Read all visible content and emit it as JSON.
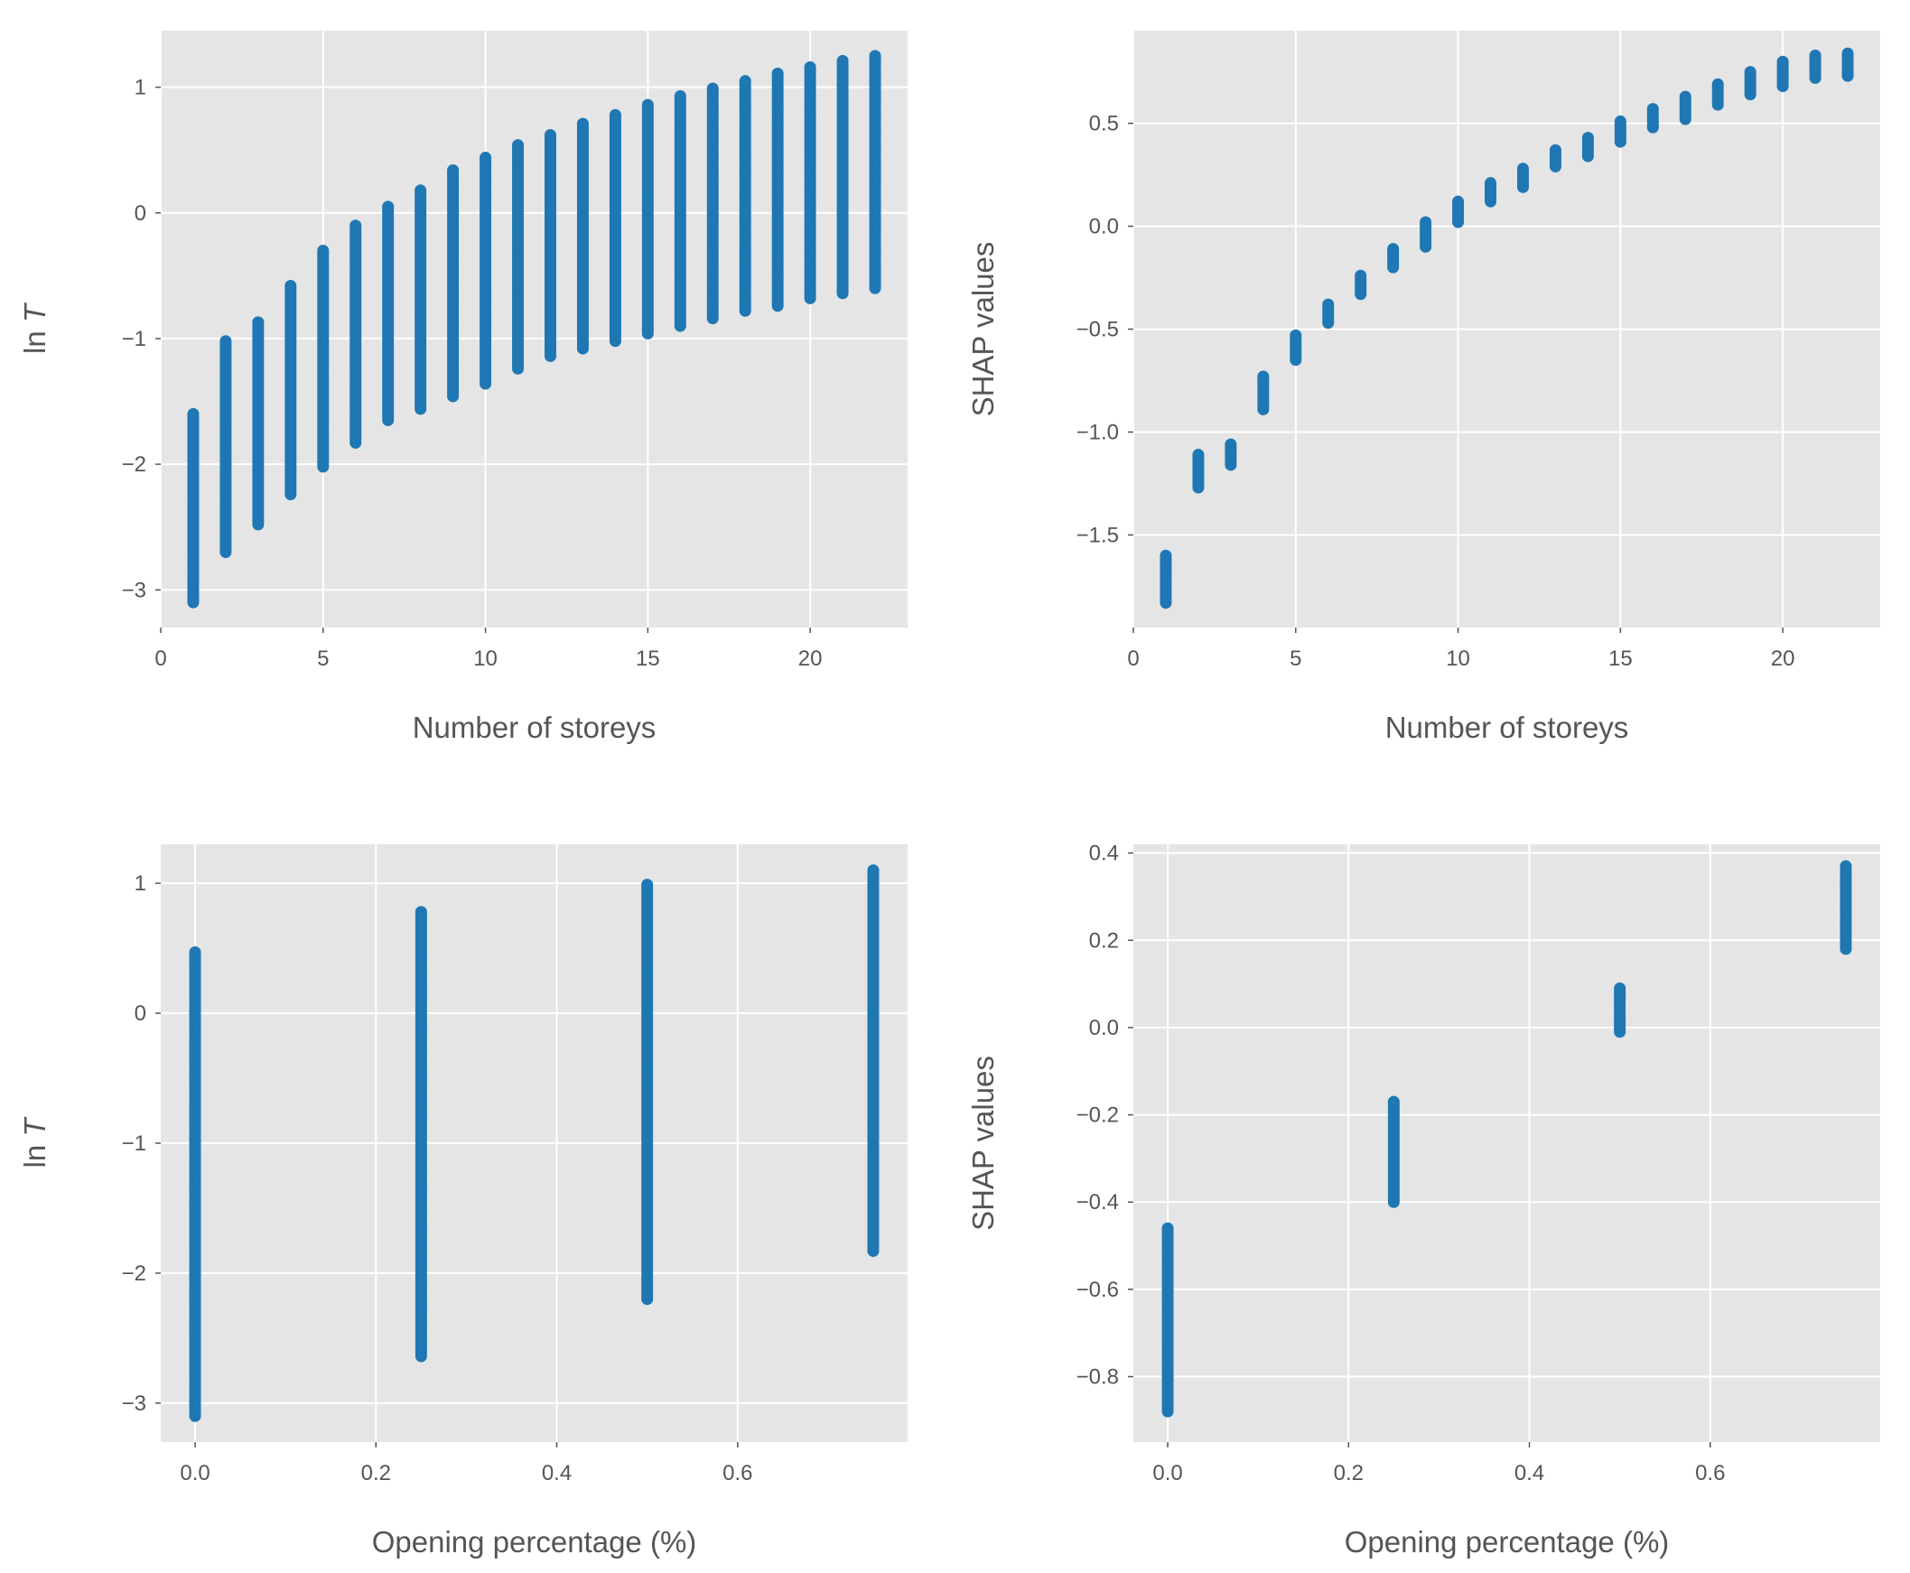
{
  "colors": {
    "panel_bg": "#e5e5e5",
    "grid": "#ffffff",
    "point": "#1f77b4",
    "text": "#555555",
    "tick": "#555555"
  },
  "chart_data": [
    {
      "type": "scatter",
      "xlabel": "Number of storeys",
      "ylabel": "ln T",
      "ylabel_parts": {
        "prefix": "ln ",
        "italic": "T"
      },
      "xlim": [
        0,
        23
      ],
      "ylim": [
        -3.3,
        1.45
      ],
      "xticks": [
        0,
        5,
        10,
        15,
        20
      ],
      "xtick_labels": [
        "0",
        "5",
        "10",
        "15",
        "20"
      ],
      "yticks": [
        -3,
        -2,
        -1,
        0,
        1
      ],
      "ytick_labels": [
        "−3",
        "−2",
        "−1",
        "0",
        "1"
      ],
      "x_values": [
        1,
        2,
        3,
        4,
        5,
        6,
        7,
        8,
        9,
        10,
        11,
        12,
        13,
        14,
        15,
        16,
        17,
        18,
        19,
        20,
        21,
        22
      ],
      "y_ranges": [
        [
          -3.1,
          -1.6
        ],
        [
          -2.7,
          -1.02
        ],
        [
          -2.48,
          -0.87
        ],
        [
          -2.24,
          -0.58
        ],
        [
          -2.02,
          -0.3
        ],
        [
          -1.83,
          -0.1
        ],
        [
          -1.65,
          0.05
        ],
        [
          -1.56,
          0.18
        ],
        [
          -1.46,
          0.34
        ],
        [
          -1.36,
          0.44
        ],
        [
          -1.24,
          0.54
        ],
        [
          -1.14,
          0.62
        ],
        [
          -1.08,
          0.71
        ],
        [
          -1.02,
          0.78
        ],
        [
          -0.96,
          0.86
        ],
        [
          -0.9,
          0.93
        ],
        [
          -0.84,
          0.99
        ],
        [
          -0.78,
          1.05
        ],
        [
          -0.74,
          1.11
        ],
        [
          -0.68,
          1.16
        ],
        [
          -0.64,
          1.21
        ],
        [
          -0.6,
          1.25
        ]
      ]
    },
    {
      "type": "scatter",
      "xlabel": "Number of storeys",
      "ylabel": "SHAP values",
      "xlim": [
        0,
        23
      ],
      "ylim": [
        -1.95,
        0.95
      ],
      "xticks": [
        0,
        5,
        10,
        15,
        20
      ],
      "xtick_labels": [
        "0",
        "5",
        "10",
        "15",
        "20"
      ],
      "yticks": [
        -1.5,
        -1.0,
        -0.5,
        0.0,
        0.5
      ],
      "ytick_labels": [
        "−1.5",
        "−1.0",
        "−0.5",
        "0.0",
        "0.5"
      ],
      "x_values": [
        1,
        2,
        3,
        4,
        5,
        6,
        7,
        8,
        9,
        10,
        11,
        12,
        13,
        14,
        15,
        16,
        17,
        18,
        19,
        20,
        21,
        22
      ],
      "y_ranges": [
        [
          -1.83,
          -1.6
        ],
        [
          -1.27,
          -1.11
        ],
        [
          -1.16,
          -1.06
        ],
        [
          -0.89,
          -0.73
        ],
        [
          -0.65,
          -0.53
        ],
        [
          -0.47,
          -0.38
        ],
        [
          -0.33,
          -0.24
        ],
        [
          -0.2,
          -0.11
        ],
        [
          -0.1,
          0.02
        ],
        [
          0.02,
          0.12
        ],
        [
          0.12,
          0.21
        ],
        [
          0.19,
          0.28
        ],
        [
          0.29,
          0.37
        ],
        [
          0.34,
          0.43
        ],
        [
          0.41,
          0.51
        ],
        [
          0.48,
          0.57
        ],
        [
          0.52,
          0.63
        ],
        [
          0.59,
          0.69
        ],
        [
          0.64,
          0.75
        ],
        [
          0.68,
          0.8
        ],
        [
          0.72,
          0.83
        ],
        [
          0.73,
          0.84
        ]
      ]
    },
    {
      "type": "scatter",
      "xlabel": "Opening percentage (%)",
      "ylabel": "ln T",
      "ylabel_parts": {
        "prefix": "ln ",
        "italic": "T"
      },
      "xlim": [
        -0.038,
        0.788
      ],
      "ylim": [
        -3.3,
        1.3
      ],
      "xticks": [
        0.0,
        0.2,
        0.4,
        0.6
      ],
      "xtick_labels": [
        "0.0",
        "0.2",
        "0.4",
        "0.6"
      ],
      "yticks": [
        -3,
        -2,
        -1,
        0,
        1
      ],
      "ytick_labels": [
        "−3",
        "−2",
        "−1",
        "0",
        "1"
      ],
      "x_values": [
        0.0,
        0.25,
        0.5,
        0.75
      ],
      "y_ranges": [
        [
          -3.1,
          0.47
        ],
        [
          -2.64,
          0.78
        ],
        [
          -2.2,
          0.99
        ],
        [
          -1.83,
          1.1
        ]
      ]
    },
    {
      "type": "scatter",
      "xlabel": "Opening percentage (%)",
      "ylabel": "SHAP values",
      "xlim": [
        -0.038,
        0.788
      ],
      "ylim": [
        -0.95,
        0.42
      ],
      "xticks": [
        0.0,
        0.2,
        0.4,
        0.6
      ],
      "xtick_labels": [
        "0.0",
        "0.2",
        "0.4",
        "0.6"
      ],
      "yticks": [
        -0.8,
        -0.6,
        -0.4,
        -0.2,
        0.0,
        0.2,
        0.4
      ],
      "ytick_labels": [
        "−0.8",
        "−0.6",
        "−0.4",
        "−0.2",
        "0.0",
        "0.2",
        "0.4"
      ],
      "x_values": [
        0.0,
        0.25,
        0.5,
        0.75
      ],
      "y_ranges": [
        [
          -0.88,
          -0.46
        ],
        [
          -0.4,
          -0.17
        ],
        [
          -0.01,
          0.09
        ],
        [
          0.18,
          0.37
        ]
      ]
    }
  ]
}
